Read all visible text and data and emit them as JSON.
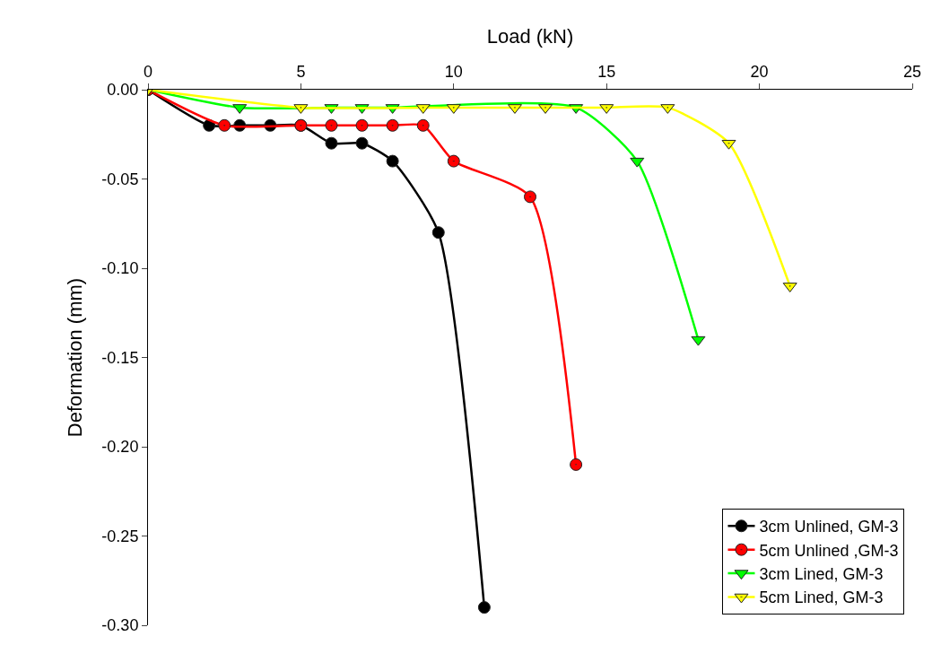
{
  "chart_data": {
    "type": "line",
    "xlabel": "Load (kN)",
    "ylabel": "Deformation (mm)",
    "xlim": [
      0,
      25
    ],
    "xticks": [
      0,
      5,
      10,
      15,
      20,
      25
    ],
    "ylim": [
      -0.3,
      0
    ],
    "yticks": [
      {
        "value": 0,
        "label": "0.00"
      },
      {
        "value": -0.05,
        "label": "-0.05"
      },
      {
        "value": -0.1,
        "label": "-0.10"
      },
      {
        "value": -0.15,
        "label": "-0.15"
      },
      {
        "value": -0.2,
        "label": "-0.20"
      },
      {
        "value": -0.25,
        "label": "-0.25"
      },
      {
        "value": -0.3,
        "label": "-0.30"
      }
    ],
    "legend": "bottom right",
    "line_style": "solid",
    "series": [
      {
        "name": "3cm Unlined, GM-3",
        "color": "#000000",
        "marker": "circle",
        "x": [
          0,
          2,
          3,
          4,
          5,
          6,
          7,
          8,
          9.5,
          11
        ],
        "values": [
          0,
          -0.02,
          -0.02,
          -0.02,
          -0.02,
          -0.03,
          -0.03,
          -0.04,
          -0.08,
          -0.29
        ]
      },
      {
        "name": "5cm Unlined ,GM-3",
        "color": "#ff0000",
        "marker": "circle",
        "x": [
          0,
          2.5,
          5,
          6,
          7,
          8,
          9,
          10,
          12.5,
          14
        ],
        "values": [
          0,
          -0.02,
          -0.02,
          -0.02,
          -0.02,
          -0.02,
          -0.02,
          -0.04,
          -0.06,
          -0.21
        ]
      },
      {
        "name": "3cm Lined, GM-3",
        "color": "#00ff00",
        "marker": "triangle",
        "x": [
          0,
          3,
          6,
          7,
          8,
          14,
          16,
          18
        ],
        "values": [
          0,
          -0.01,
          -0.01,
          -0.01,
          -0.01,
          -0.01,
          -0.04,
          -0.14
        ]
      },
      {
        "name": "5cm Lined, GM-3",
        "color": "#ffff00",
        "marker": "triangle",
        "x": [
          0,
          5,
          9,
          10,
          12,
          13,
          15,
          17,
          19,
          21
        ],
        "values": [
          0,
          -0.01,
          -0.01,
          -0.01,
          -0.01,
          -0.01,
          -0.01,
          -0.01,
          -0.03,
          -0.11
        ]
      }
    ]
  }
}
